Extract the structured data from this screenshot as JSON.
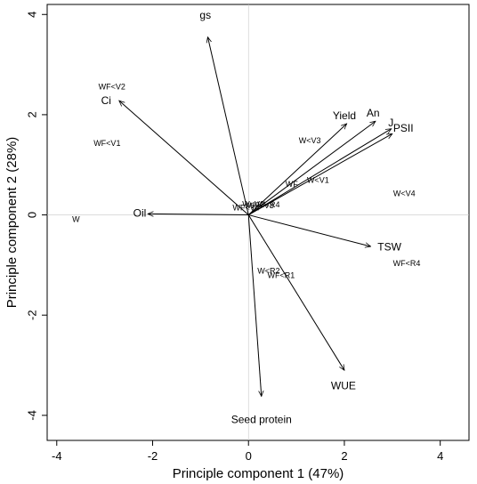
{
  "chart_data": {
    "type": "scatter",
    "subtype": "biplot",
    "title": "",
    "xlabel": "Principle component 1 (47%)",
    "ylabel": "Principle component 2 (28%)",
    "xlim": [
      -4.2,
      4.6
    ],
    "ylim": [
      -4.5,
      4.2
    ],
    "xticks": [
      -4,
      -2,
      0,
      2,
      4
    ],
    "yticks": [
      -4,
      -2,
      0,
      2,
      4
    ],
    "grid": false,
    "legend": "none",
    "colors": {
      "line": "#000000",
      "text": "#000000",
      "background": "#ffffff"
    },
    "observations": [
      {
        "label": "WF<V2",
        "x": -2.85,
        "y": 2.55
      },
      {
        "label": "WF<V1",
        "x": -2.95,
        "y": 1.42
      },
      {
        "label": "W",
        "x": -3.6,
        "y": -0.1
      },
      {
        "label": "W<V3",
        "x": 1.28,
        "y": 1.47
      },
      {
        "label": "WF",
        "x": 0.9,
        "y": 0.6
      },
      {
        "label": "W<V1",
        "x": 1.45,
        "y": 0.68
      },
      {
        "label": "W<V4",
        "x": 3.25,
        "y": 0.42
      },
      {
        "label": "WF<V4",
        "x": -0.05,
        "y": 0.13
      },
      {
        "label": "W<V2",
        "x": 0.1,
        "y": 0.2
      },
      {
        "label": "WF<V3",
        "x": 0.25,
        "y": 0.18
      },
      {
        "label": "W<R4",
        "x": 0.42,
        "y": 0.19
      },
      {
        "label": "W<R2",
        "x": 0.42,
        "y": -1.13
      },
      {
        "label": "WF<R1",
        "x": 0.68,
        "y": -1.22
      },
      {
        "label": "WF<R4",
        "x": 3.3,
        "y": -0.98
      }
    ],
    "loadings": [
      {
        "label": "gs",
        "x": -0.85,
        "y": 3.55,
        "label_x": -0.9,
        "label_y": 3.97
      },
      {
        "label": "Ci",
        "x": -2.7,
        "y": 2.28,
        "label_x": -2.97,
        "label_y": 2.27
      },
      {
        "label": "Oil",
        "x": -2.1,
        "y": 0.02,
        "label_x": -2.27,
        "label_y": 0.02
      },
      {
        "label": "Yield",
        "x": 2.05,
        "y": 1.82,
        "label_x": 2.0,
        "label_y": 1.97
      },
      {
        "label": "An",
        "x": 2.65,
        "y": 1.87,
        "label_x": 2.6,
        "label_y": 2.02
      },
      {
        "label": "J",
        "x": 2.98,
        "y": 1.72,
        "label_x": 2.97,
        "label_y": 1.82
      },
      {
        "label": "PSII",
        "x": 3.0,
        "y": 1.62,
        "label_x": 3.23,
        "label_y": 1.72
      },
      {
        "label": "TSW",
        "x": 2.55,
        "y": -0.63,
        "label_x": 2.94,
        "label_y": -0.65
      },
      {
        "label": "WUE",
        "x": 2.0,
        "y": -3.1,
        "label_x": 1.98,
        "label_y": -3.42
      },
      {
        "label": "Seed protein",
        "x": 0.27,
        "y": -3.62,
        "label_x": 0.27,
        "label_y": -4.1
      }
    ]
  }
}
